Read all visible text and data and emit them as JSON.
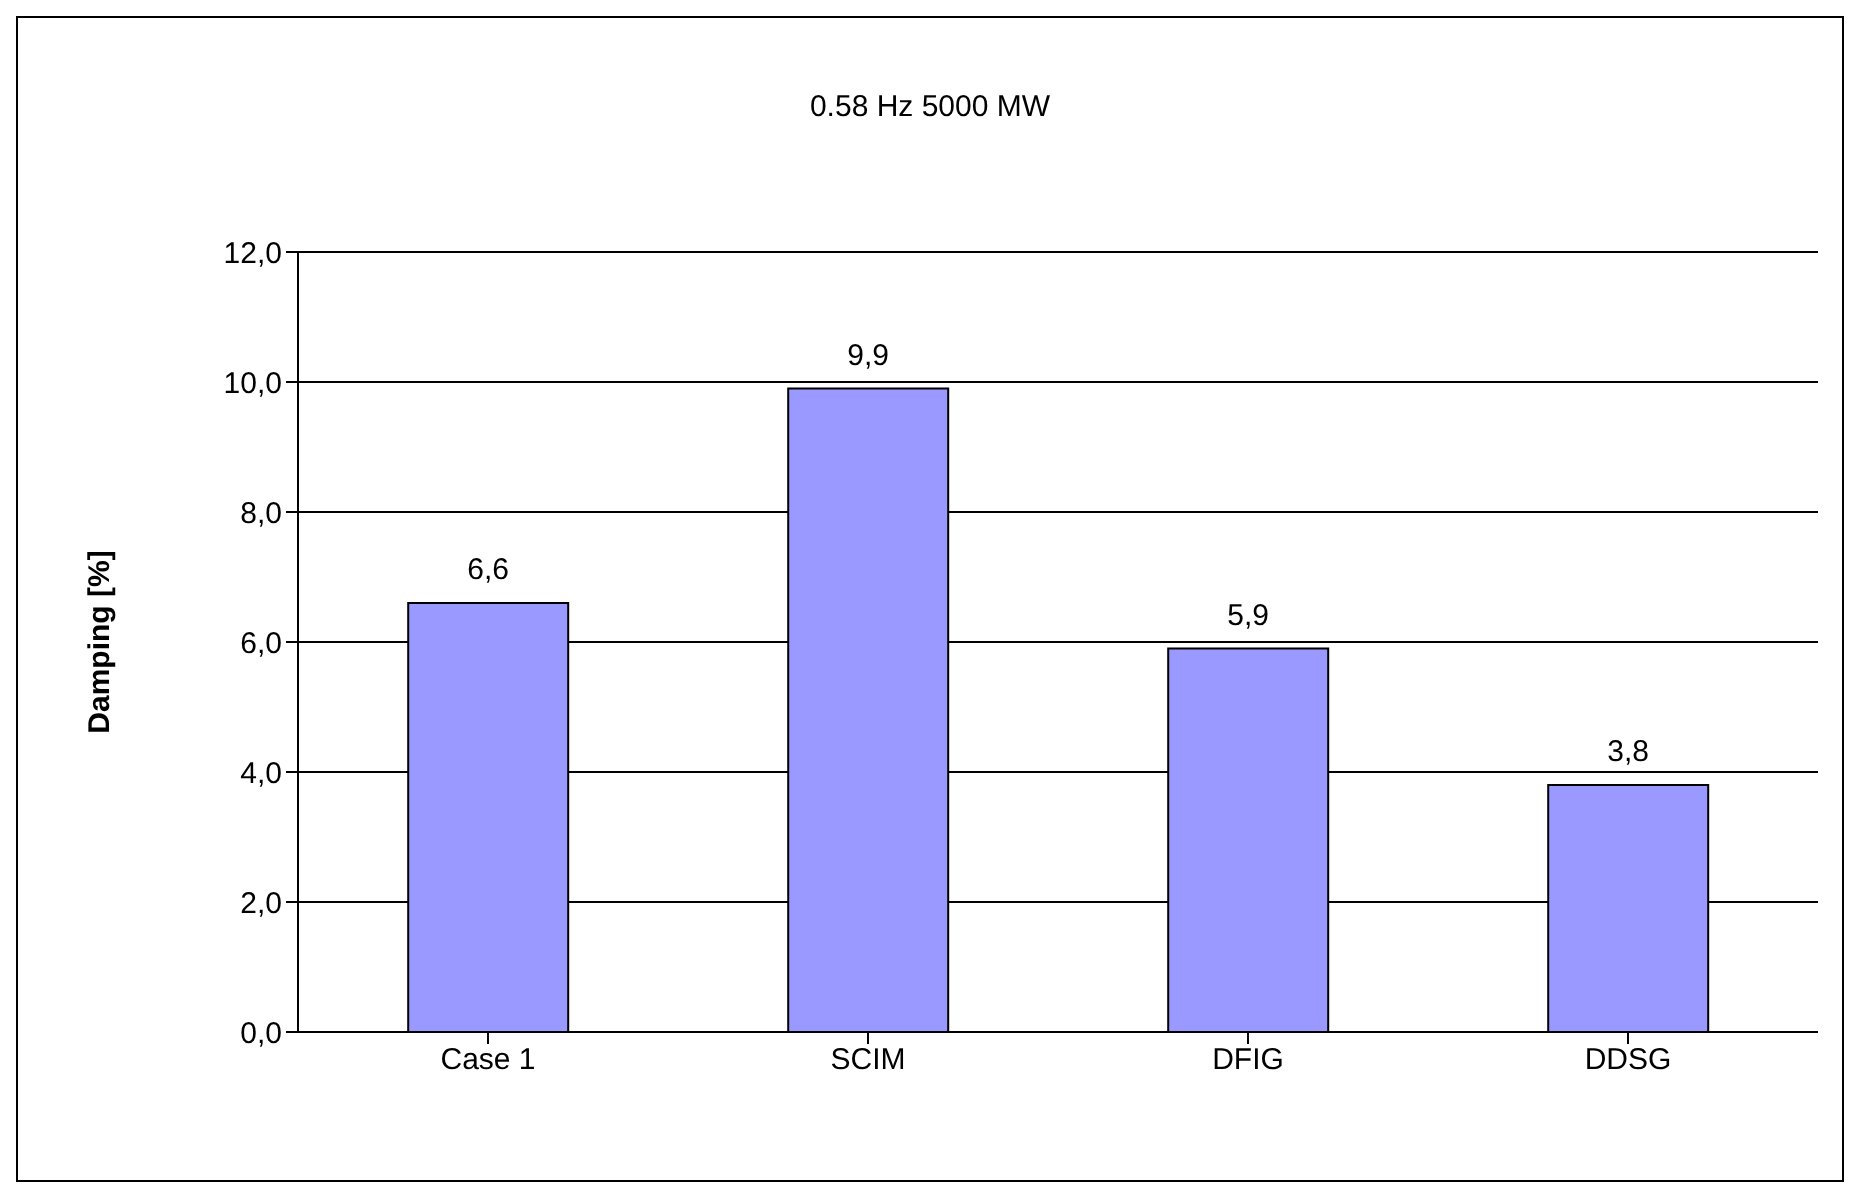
{
  "chart_data": {
    "type": "bar",
    "title": "0.58 Hz 5000 MW",
    "ylabel": "Damping [%]",
    "categories": [
      "Case 1",
      "SCIM",
      "DFIG",
      "DDSG"
    ],
    "values": [
      6.6,
      9.9,
      5.9,
      3.8
    ],
    "value_labels": [
      "6,6",
      "9,9",
      "5,9",
      "3,8"
    ],
    "color": "#9999ff",
    "ylim": [
      0,
      12
    ],
    "yticks": [
      {
        "value": 0,
        "label": "0,0"
      },
      {
        "value": 2,
        "label": "2,0"
      },
      {
        "value": 4,
        "label": "4,0"
      },
      {
        "value": 6,
        "label": "6,0"
      },
      {
        "value": 8,
        "label": "8,0"
      },
      {
        "value": 10,
        "label": "10,0"
      },
      {
        "value": 12,
        "label": "12,0"
      }
    ],
    "grid": "y",
    "legend": false
  }
}
